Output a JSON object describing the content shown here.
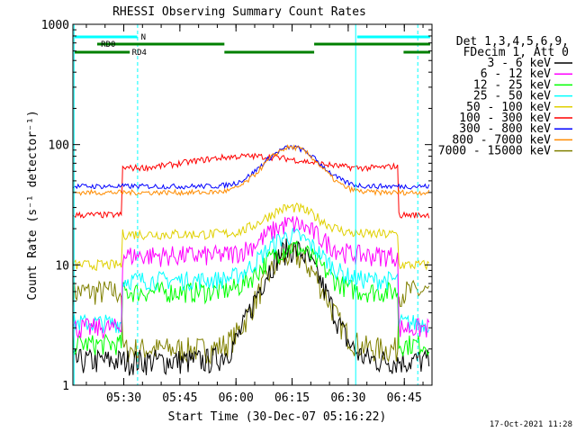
{
  "chart_data": {
    "type": "line",
    "title": "RHESSI Observing Summary Count Rates",
    "xlabel": "Start Time (30-Dec-07 05:16:22)",
    "ylabel": "Count Rate (s⁻¹ detector⁻¹)",
    "yscale": "log",
    "ylim": [
      1,
      1000
    ],
    "xlim_minutes": [
      0,
      96
    ],
    "x_ticks": [
      {
        "label": "05:30",
        "minute": 13.6
      },
      {
        "label": "05:45",
        "minute": 28.6
      },
      {
        "label": "06:00",
        "minute": 43.6
      },
      {
        "label": "06:15",
        "minute": 58.6
      },
      {
        "label": "06:30",
        "minute": 73.6
      },
      {
        "label": "06:45",
        "minute": 88.6
      }
    ],
    "y_ticks": [
      {
        "label": "1",
        "value": 1
      },
      {
        "label": "10",
        "value": 10
      },
      {
        "label": "100",
        "value": 100
      },
      {
        "label": "1000",
        "value": 1000
      }
    ],
    "legend_header": [
      "Det 1,3,4,5,6,9,",
      "FDecim 1, Att 0"
    ],
    "series": [
      {
        "name": "3 - 6 keV",
        "color": "#000000"
      },
      {
        "name": "6 - 12 keV",
        "color": "#ff00ff"
      },
      {
        "name": "12 - 25 keV",
        "color": "#00ff00"
      },
      {
        "name": "25 - 50 keV",
        "color": "#00ffff"
      },
      {
        "name": "50 - 100 keV",
        "color": "#e0d000"
      },
      {
        "name": "100 - 300 keV",
        "color": "#ff0000"
      },
      {
        "name": "300 - 800 keV",
        "color": "#0000ff"
      },
      {
        "name": "800 - 7000 keV",
        "color": "#ff8c00"
      },
      {
        "name": "7000 - 15000 keV",
        "color": "#808000"
      }
    ],
    "flags": {
      "N_label": "N",
      "RD0_label": "RD0",
      "RD4_label": "RD4"
    },
    "annotations": [
      "N",
      "RD0",
      "RD4"
    ]
  },
  "footer": {
    "timestamp": "17-Oct-2021 11:28"
  }
}
